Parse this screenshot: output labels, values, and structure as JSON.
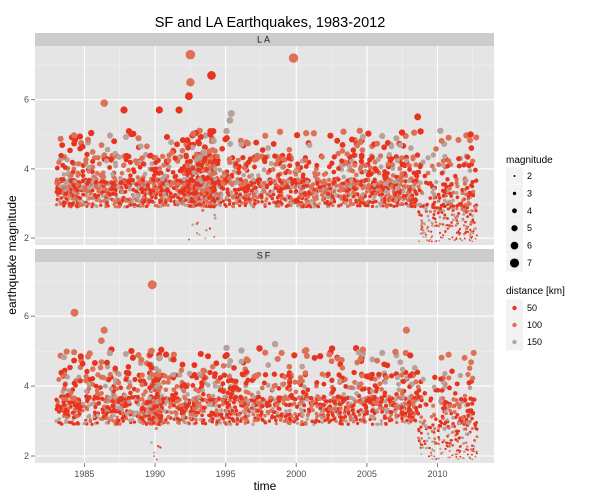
{
  "chart_data": {
    "type": "scatter",
    "title": "SF and LA Earthquakes, 1983-2012",
    "xlabel": "time",
    "ylabel": "earthquake magnitude",
    "xlim": [
      1981.5,
      2014
    ],
    "ylim": [
      1.8,
      7.55
    ],
    "x_ticks": [
      1985,
      1990,
      1995,
      2000,
      2005,
      2010
    ],
    "y_ticks": [
      2,
      4,
      6
    ],
    "facets": [
      {
        "label": "LA",
        "notable_points": [
          {
            "x": 1987.8,
            "y": 5.7,
            "distance_km": 50
          },
          {
            "x": 1990.3,
            "y": 5.7,
            "distance_km": 50
          },
          {
            "x": 1991.7,
            "y": 5.7,
            "distance_km": 50
          },
          {
            "x": 1992.4,
            "y": 6.1,
            "distance_km": 50
          },
          {
            "x": 1992.5,
            "y": 7.3,
            "distance_km": 100
          },
          {
            "x": 1992.5,
            "y": 6.5,
            "distance_km": 100
          },
          {
            "x": 1994.0,
            "y": 6.7,
            "distance_km": 50
          },
          {
            "x": 1999.8,
            "y": 7.2,
            "distance_km": 100
          },
          {
            "x": 1986.4,
            "y": 5.9,
            "distance_km": 100
          },
          {
            "x": 1995.4,
            "y": 5.6,
            "distance_km": 150
          },
          {
            "x": 1995.3,
            "y": 5.4,
            "distance_km": 150
          },
          {
            "x": 2008.6,
            "y": 5.5,
            "distance_km": 50
          },
          {
            "x": 2010.2,
            "y": 5.1,
            "distance_km": 150
          },
          {
            "x": 2004.5,
            "y": 5.1,
            "distance_km": 100
          }
        ]
      },
      {
        "label": "SF",
        "notable_points": [
          {
            "x": 1984.3,
            "y": 6.1,
            "distance_km": 100
          },
          {
            "x": 1989.8,
            "y": 6.9,
            "distance_km": 100
          },
          {
            "x": 1986.4,
            "y": 5.6,
            "distance_km": 100
          },
          {
            "x": 2007.8,
            "y": 5.6,
            "distance_km": 100
          },
          {
            "x": 1998.5,
            "y": 5.2,
            "distance_km": 150
          },
          {
            "x": 2000.6,
            "y": 5.0,
            "distance_km": 100
          },
          {
            "x": 1986.2,
            "y": 5.3,
            "distance_km": 100
          },
          {
            "x": 1989.7,
            "y": 5.0,
            "distance_km": 100
          }
        ]
      }
    ],
    "legend_size": {
      "title": "magnitude",
      "entries": [
        "2",
        "3",
        "4",
        "5",
        "6",
        "7"
      ]
    },
    "legend_color": {
      "title": "distance [km]",
      "entries": [
        {
          "label": "50",
          "color": "#e8331e"
        },
        {
          "label": "100",
          "color": "#de7055"
        },
        {
          "label": "150",
          "color": "#b6a19b"
        }
      ]
    },
    "legend_placement": "right",
    "grid": true,
    "colors": {
      "panel_bg": "#e5e5e5",
      "strip_bg": "#cccccc",
      "grid_major": "#ffffff",
      "grid_minor": "#f2f2f2",
      "near": "#e8331e",
      "mid": "#de7055",
      "far": "#b6a19b"
    }
  }
}
